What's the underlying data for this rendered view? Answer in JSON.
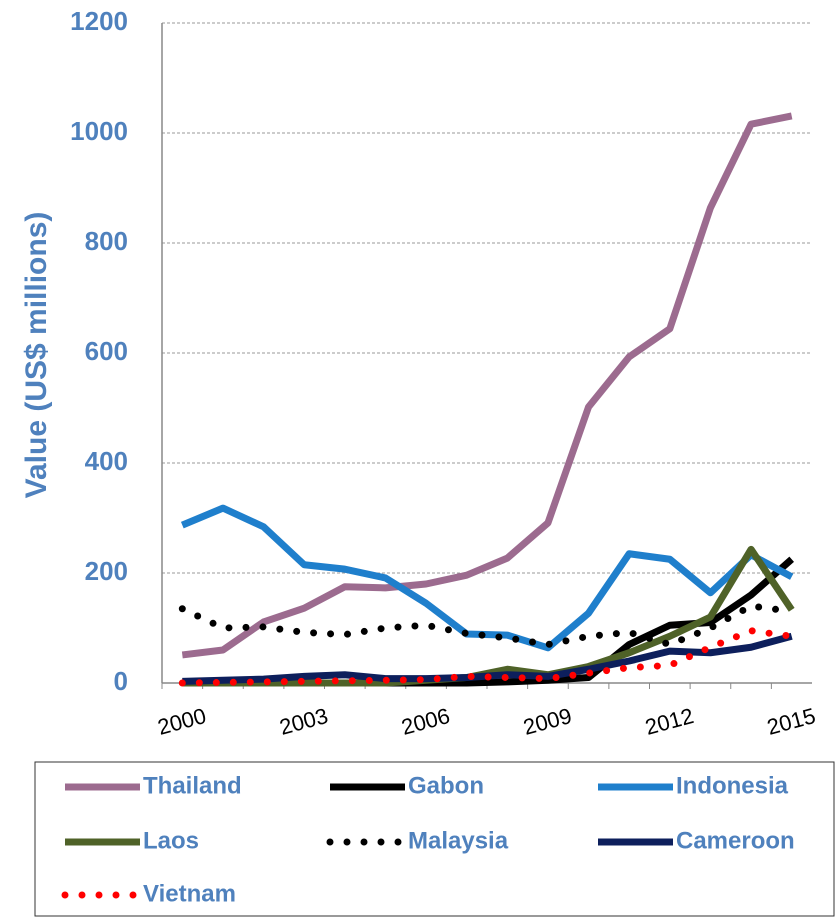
{
  "chart_data": {
    "type": "line",
    "y_label": "Value (US$ millions)",
    "categories": [
      "2000",
      null,
      null,
      "2003",
      null,
      null,
      "2006",
      null,
      null,
      "2009",
      null,
      null,
      "2012",
      null,
      null,
      "2015"
    ],
    "ylim": [
      0,
      1200
    ],
    "yticks": [
      0,
      200,
      400,
      600,
      800,
      1000,
      1200
    ],
    "grid": true,
    "series": [
      {
        "name": "Thailand",
        "color": "#9c6b8f",
        "style": "solid",
        "values": [
          51,
          60,
          111,
          136,
          175,
          173,
          180,
          196,
          227,
          291,
          502,
          593,
          644,
          864,
          1016,
          1031
        ]
      },
      {
        "name": "Gabon",
        "color": "#000000",
        "style": "solid",
        "values": [
          0,
          0,
          0,
          0,
          0,
          0,
          0,
          0,
          2,
          5,
          10,
          70,
          105,
          110,
          160,
          225
        ]
      },
      {
        "name": "Indonesia",
        "color": "#1f7fcc",
        "style": "solid",
        "values": [
          287,
          318,
          284,
          215,
          207,
          191,
          145,
          89,
          87,
          64,
          127,
          235,
          225,
          164,
          233,
          193
        ]
      },
      {
        "name": "Laos",
        "color": "#4f6228",
        "style": "solid",
        "values": [
          0,
          0,
          0,
          0,
          0,
          0,
          5,
          10,
          25,
          15,
          30,
          55,
          85,
          120,
          243,
          133
        ]
      },
      {
        "name": "Malaysia",
        "color": "#000000",
        "style": "dotted",
        "values": [
          135,
          100,
          102,
          92,
          88,
          100,
          105,
          90,
          82,
          70,
          85,
          92,
          70,
          100,
          140,
          130
        ]
      },
      {
        "name": "Cameroon",
        "color": "#0d1f5c",
        "style": "solid",
        "values": [
          3,
          5,
          7,
          12,
          15,
          8,
          8,
          10,
          15,
          12,
          25,
          40,
          58,
          55,
          65,
          85
        ]
      },
      {
        "name": "Vietnam",
        "color": "#ff0000",
        "style": "dotted",
        "values": [
          0,
          1,
          2,
          3,
          4,
          5,
          6,
          12,
          10,
          8,
          18,
          28,
          32,
          65,
          95,
          85
        ]
      }
    ]
  }
}
